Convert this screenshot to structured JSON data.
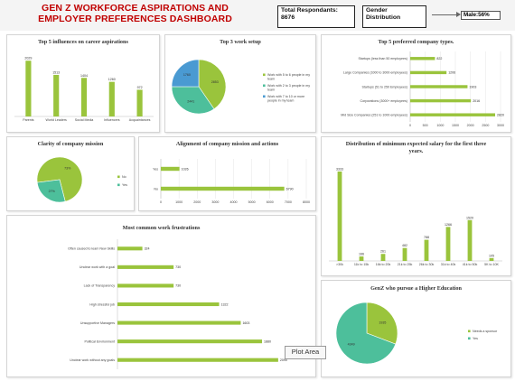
{
  "header": {
    "title": "GEN Z WORKFORCE ASPIRATIONS AND EMPLOYER PREFERENCES DASHBOARD",
    "respondents_label": "Total Respondants:",
    "respondents_value": "8676",
    "gender_label": "Gender Distribution",
    "male_label": "Male:56%"
  },
  "tooltip": "Plot Area",
  "colors": {
    "green": "#9ac43c",
    "teal": "#4dbf9b",
    "blue": "#4a9ad2",
    "grid": "#e4e4e4"
  },
  "chart_data": [
    {
      "id": "influences",
      "type": "bar",
      "title": "Top 5 influences on career aspirations",
      "categories": [
        "Parents",
        "World Leaders",
        "Social Media",
        "Influencers",
        "Acquaintances"
      ],
      "values": [
        2029,
        1513,
        1404,
        1260,
        972
      ],
      "ylim": [
        0,
        2300
      ]
    },
    {
      "id": "work_setup",
      "type": "pie",
      "title": "Top 3 work setup",
      "slices": [
        {
          "label": "Work with 5 to 6 people in my team",
          "value": 2853,
          "color": "#9ac43c"
        },
        {
          "label": "Work with 2 to 3 people in my team",
          "value": 2441,
          "color": "#4dbf9b"
        },
        {
          "label": "Work with 7 to 10 or more people in my team",
          "value": 1760,
          "color": "#4a9ad2"
        }
      ]
    },
    {
      "id": "company_types",
      "type": "bar",
      "title": "Top 5 preferred company types.",
      "orientation": "horizontal",
      "categories": [
        "Startups (less than 50 employees)",
        "Large Companies (1000 to 3000 employees)",
        "Startups (51 to 250 Employees)",
        "Corporations (3000+ employees)",
        "Mid Size Companies (251 to 1000 employees)"
      ],
      "values": [
        822,
        1206,
        1903,
        2016,
        2820
      ],
      "xticks": [
        "0",
        "500",
        "1000",
        "1500",
        "2000",
        "2500",
        "3000"
      ],
      "xlim": [
        0,
        3000
      ]
    },
    {
      "id": "mission_clarity",
      "type": "pie",
      "title": "Clarity of company mission",
      "slices": [
        {
          "label": "No",
          "value": 73,
          "display": "73%",
          "color": "#9ac43c"
        },
        {
          "label": "Yes",
          "value": 27,
          "display": "27%",
          "color": "#4dbf9b"
        }
      ]
    },
    {
      "id": "mission_alignment",
      "type": "bar",
      "title": "Alignment of company mission and actions",
      "orientation": "horizontal",
      "categories": [
        "Yes",
        "No"
      ],
      "values": [
        1026,
        6790
      ],
      "xticks": [
        "0",
        "1000",
        "2000",
        "3000",
        "4000",
        "5000",
        "6000",
        "7000",
        "8000"
      ],
      "xlim": [
        0,
        8000
      ]
    },
    {
      "id": "salary",
      "type": "bar",
      "title": "Distribution of minimum expected salary for the first three years.",
      "categories": [
        ">30k",
        "11k to 15k",
        "16k to 20k",
        "21k to 25k",
        "26k to 30k",
        "31k to 40k",
        "41k to 50k",
        "5K to 10K"
      ],
      "values": [
        3333,
        166,
        261,
        482,
        788,
        1266,
        1520,
        105
      ],
      "ylim": [
        0,
        3600
      ]
    },
    {
      "id": "frustrations",
      "type": "bar",
      "title": "Most common work frustrations",
      "orientation": "horizontal",
      "categories": [
        "Often caused to learn New Skills",
        "Unclear work with a goal",
        "Lack of Transparency",
        "High stressful job",
        "Unsupportive Managers",
        "Political Environment",
        "Unclear work without any goals"
      ],
      "values": [
        324,
        730,
        730,
        1322,
        1603,
        1880,
        2090
      ],
      "xlim": [
        0,
        2150
      ]
    },
    {
      "id": "higher_education",
      "type": "pie",
      "title": "GenZ who pursue a Higher Education",
      "slices": [
        {
          "label": "Needs a sponsor",
          "value": 1935,
          "color": "#9ac43c"
        },
        {
          "label": "Yes",
          "value": 4349,
          "color": "#4dbf9b"
        }
      ]
    }
  ]
}
